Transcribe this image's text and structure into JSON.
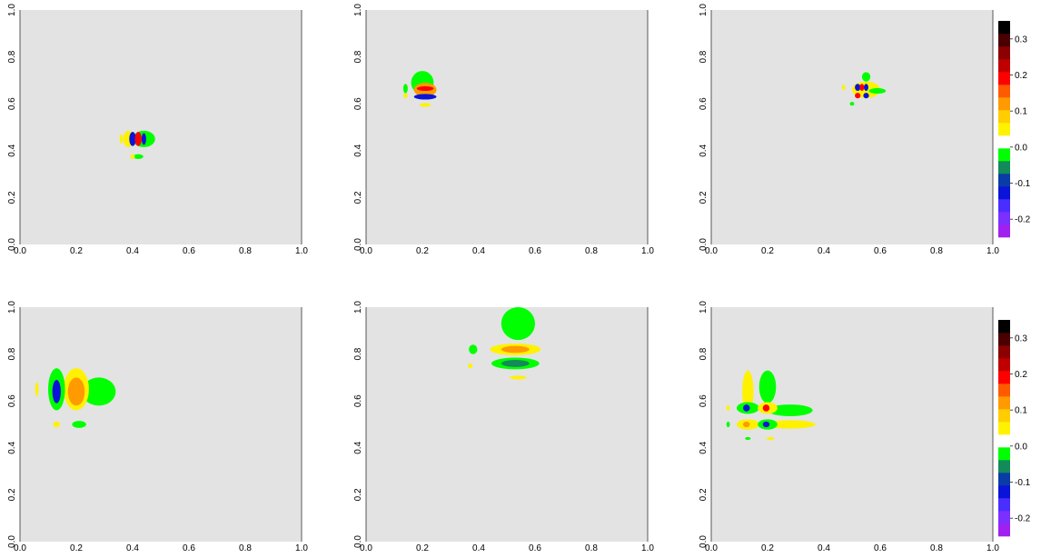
{
  "chart_data": {
    "type": "heatmap",
    "layout": "2x3 grid of filled-contour panels",
    "panel_background": "#e3e3e3",
    "x_ticks": [
      "0.0",
      "0.2",
      "0.4",
      "0.6",
      "0.8",
      "1.0"
    ],
    "y_ticks": [
      "0.0",
      "0.2",
      "0.4",
      "0.6",
      "0.8",
      "1.0"
    ],
    "xlim": [
      0,
      1
    ],
    "ylim": [
      0,
      1
    ],
    "colorbar": {
      "range": [
        -0.25,
        0.35
      ],
      "tick_labels": [
        "-0.2",
        "-0.1",
        "0.0",
        "0.1",
        "0.2",
        "0.3"
      ],
      "ticks": [
        -0.2,
        -0.1,
        0.0,
        0.1,
        0.2,
        0.3
      ],
      "colors": [
        "#a020f0",
        "#7b30ff",
        "#4a2dff",
        "#0a14d8",
        "#0a3ca8",
        "#138a5a",
        "#00ff00",
        "#ffffff",
        "#fff200",
        "#ffcd00",
        "#ff9a00",
        "#ff5a00",
        "#ff0000",
        "#c00000",
        "#8b0000",
        "#4a0000",
        "#000000"
      ],
      "shown_on_panels": [
        2,
        5
      ]
    },
    "panels": [
      {
        "blobs": [
          {
            "x": 0.44,
            "y": 0.45,
            "rx": 0.04,
            "ry": 0.035,
            "level": "green"
          },
          {
            "x": 0.385,
            "y": 0.45,
            "rx": 0.018,
            "ry": 0.035,
            "level": "yellow"
          },
          {
            "x": 0.4,
            "y": 0.45,
            "rx": 0.012,
            "ry": 0.03,
            "level": "blue"
          },
          {
            "x": 0.42,
            "y": 0.45,
            "rx": 0.012,
            "ry": 0.03,
            "level": "red"
          },
          {
            "x": 0.44,
            "y": 0.45,
            "rx": 0.008,
            "ry": 0.025,
            "level": "blue"
          },
          {
            "x": 0.42,
            "y": 0.375,
            "rx": 0.018,
            "ry": 0.01,
            "level": "green"
          },
          {
            "x": 0.4,
            "y": 0.375,
            "rx": 0.008,
            "ry": 0.01,
            "level": "yellow"
          },
          {
            "x": 0.36,
            "y": 0.45,
            "rx": 0.006,
            "ry": 0.02,
            "level": "yellow"
          }
        ]
      },
      {
        "blobs": [
          {
            "x": 0.2,
            "y": 0.69,
            "rx": 0.04,
            "ry": 0.05,
            "level": "green"
          },
          {
            "x": 0.21,
            "y": 0.66,
            "rx": 0.04,
            "ry": 0.03,
            "level": "orange"
          },
          {
            "x": 0.21,
            "y": 0.665,
            "rx": 0.03,
            "ry": 0.01,
            "level": "red"
          },
          {
            "x": 0.21,
            "y": 0.63,
            "rx": 0.04,
            "ry": 0.012,
            "level": "blue"
          },
          {
            "x": 0.14,
            "y": 0.665,
            "rx": 0.008,
            "ry": 0.02,
            "level": "green"
          },
          {
            "x": 0.14,
            "y": 0.635,
            "rx": 0.008,
            "ry": 0.01,
            "level": "yellow"
          },
          {
            "x": 0.21,
            "y": 0.595,
            "rx": 0.02,
            "ry": 0.008,
            "level": "yellow"
          }
        ]
      },
      {
        "blobs": [
          {
            "x": 0.55,
            "y": 0.66,
            "rx": 0.05,
            "ry": 0.035,
            "level": "yellow"
          },
          {
            "x": 0.55,
            "y": 0.715,
            "rx": 0.015,
            "ry": 0.02,
            "level": "green"
          },
          {
            "x": 0.59,
            "y": 0.655,
            "rx": 0.03,
            "ry": 0.012,
            "level": "green"
          },
          {
            "x": 0.52,
            "y": 0.67,
            "rx": 0.01,
            "ry": 0.015,
            "level": "blue"
          },
          {
            "x": 0.535,
            "y": 0.67,
            "rx": 0.008,
            "ry": 0.015,
            "level": "red"
          },
          {
            "x": 0.55,
            "y": 0.67,
            "rx": 0.008,
            "ry": 0.015,
            "level": "blue"
          },
          {
            "x": 0.52,
            "y": 0.635,
            "rx": 0.01,
            "ry": 0.012,
            "level": "red"
          },
          {
            "x": 0.55,
            "y": 0.635,
            "rx": 0.01,
            "ry": 0.012,
            "level": "blue"
          },
          {
            "x": 0.5,
            "y": 0.6,
            "rx": 0.008,
            "ry": 0.008,
            "level": "green"
          },
          {
            "x": 0.47,
            "y": 0.67,
            "rx": 0.006,
            "ry": 0.012,
            "level": "yellow"
          }
        ]
      },
      {
        "blobs": [
          {
            "x": 0.28,
            "y": 0.64,
            "rx": 0.06,
            "ry": 0.06,
            "level": "green"
          },
          {
            "x": 0.2,
            "y": 0.65,
            "rx": 0.045,
            "ry": 0.09,
            "level": "yellow"
          },
          {
            "x": 0.2,
            "y": 0.64,
            "rx": 0.03,
            "ry": 0.06,
            "level": "orange"
          },
          {
            "x": 0.13,
            "y": 0.65,
            "rx": 0.03,
            "ry": 0.09,
            "level": "green"
          },
          {
            "x": 0.13,
            "y": 0.64,
            "rx": 0.015,
            "ry": 0.05,
            "level": "blue"
          },
          {
            "x": 0.06,
            "y": 0.65,
            "rx": 0.006,
            "ry": 0.03,
            "level": "yellow"
          },
          {
            "x": 0.21,
            "y": 0.5,
            "rx": 0.025,
            "ry": 0.015,
            "level": "green"
          },
          {
            "x": 0.13,
            "y": 0.5,
            "rx": 0.012,
            "ry": 0.012,
            "level": "yellow"
          }
        ]
      },
      {
        "blobs": [
          {
            "x": 0.54,
            "y": 0.93,
            "rx": 0.06,
            "ry": 0.07,
            "level": "green"
          },
          {
            "x": 0.53,
            "y": 0.82,
            "rx": 0.09,
            "ry": 0.025,
            "level": "yellow"
          },
          {
            "x": 0.53,
            "y": 0.82,
            "rx": 0.05,
            "ry": 0.015,
            "level": "orange"
          },
          {
            "x": 0.53,
            "y": 0.76,
            "rx": 0.085,
            "ry": 0.025,
            "level": "green"
          },
          {
            "x": 0.53,
            "y": 0.76,
            "rx": 0.05,
            "ry": 0.015,
            "level": "teal"
          },
          {
            "x": 0.54,
            "y": 0.7,
            "rx": 0.03,
            "ry": 0.008,
            "level": "yellow"
          },
          {
            "x": 0.38,
            "y": 0.82,
            "rx": 0.015,
            "ry": 0.02,
            "level": "green"
          },
          {
            "x": 0.37,
            "y": 0.75,
            "rx": 0.008,
            "ry": 0.01,
            "level": "yellow"
          }
        ]
      },
      {
        "blobs": [
          {
            "x": 0.28,
            "y": 0.56,
            "rx": 0.08,
            "ry": 0.025,
            "level": "green"
          },
          {
            "x": 0.28,
            "y": 0.5,
            "rx": 0.09,
            "ry": 0.018,
            "level": "yellow"
          },
          {
            "x": 0.2,
            "y": 0.66,
            "rx": 0.03,
            "ry": 0.07,
            "level": "green"
          },
          {
            "x": 0.13,
            "y": 0.64,
            "rx": 0.02,
            "ry": 0.09,
            "level": "yellow"
          },
          {
            "x": 0.13,
            "y": 0.57,
            "rx": 0.04,
            "ry": 0.025,
            "level": "green"
          },
          {
            "x": 0.2,
            "y": 0.57,
            "rx": 0.035,
            "ry": 0.025,
            "level": "yellow"
          },
          {
            "x": 0.13,
            "y": 0.5,
            "rx": 0.04,
            "ry": 0.022,
            "level": "yellow"
          },
          {
            "x": 0.2,
            "y": 0.5,
            "rx": 0.035,
            "ry": 0.022,
            "level": "green"
          },
          {
            "x": 0.125,
            "y": 0.57,
            "rx": 0.012,
            "ry": 0.015,
            "level": "blue"
          },
          {
            "x": 0.195,
            "y": 0.57,
            "rx": 0.012,
            "ry": 0.015,
            "level": "red"
          },
          {
            "x": 0.125,
            "y": 0.5,
            "rx": 0.012,
            "ry": 0.012,
            "level": "orange"
          },
          {
            "x": 0.195,
            "y": 0.5,
            "rx": 0.012,
            "ry": 0.012,
            "level": "blue"
          },
          {
            "x": 0.06,
            "y": 0.57,
            "rx": 0.006,
            "ry": 0.012,
            "level": "yellow"
          },
          {
            "x": 0.06,
            "y": 0.5,
            "rx": 0.006,
            "ry": 0.012,
            "level": "green"
          },
          {
            "x": 0.13,
            "y": 0.44,
            "rx": 0.01,
            "ry": 0.006,
            "level": "green"
          },
          {
            "x": 0.21,
            "y": 0.44,
            "rx": 0.015,
            "ry": 0.006,
            "level": "yellow"
          }
        ]
      }
    ],
    "level_colors": {
      "green": "#00ff00",
      "yellow": "#fff200",
      "orange": "#ff9a00",
      "red": "#ff0000",
      "blue": "#0a14d8",
      "teal": "#138a5a"
    }
  }
}
